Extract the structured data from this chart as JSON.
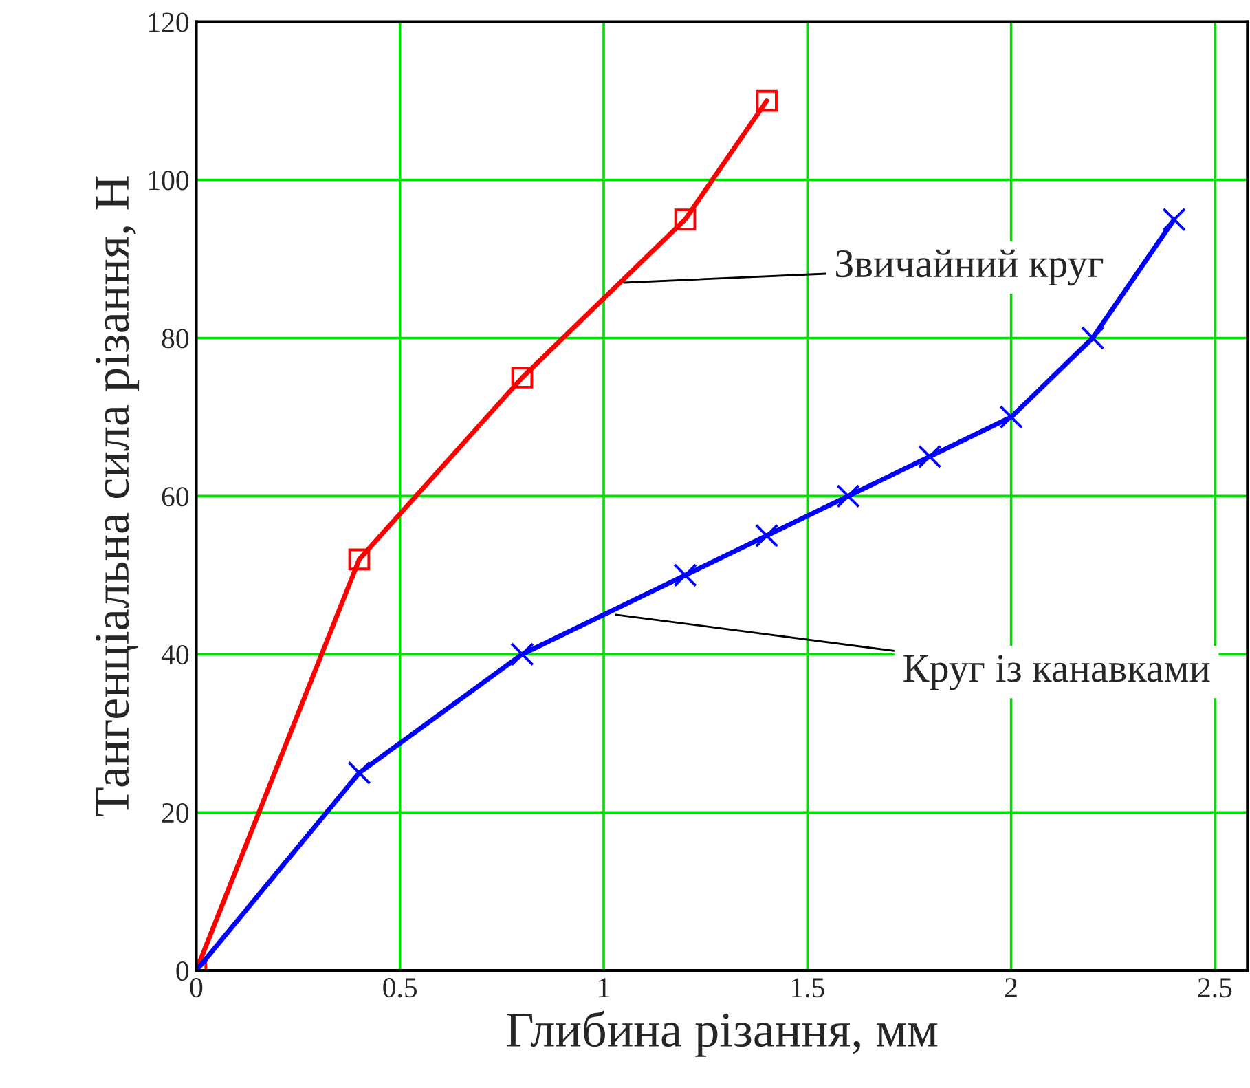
{
  "chart_data": {
    "type": "line",
    "xlabel": "Глибина різання, мм",
    "ylabel": "Тангенціальна сила різання, Н",
    "xlim": [
      0,
      2.58
    ],
    "xticks": [
      0,
      0.5,
      1,
      1.5,
      2,
      2.5
    ],
    "ylim": [
      0,
      120
    ],
    "yticks": [
      0,
      20,
      40,
      60,
      80,
      100,
      120
    ],
    "grid": true,
    "series": [
      {
        "color": "#ff0000",
        "marker": "square",
        "x": [
          0,
          0.4,
          0.8,
          1.2,
          1.4
        ],
        "values": [
          0,
          52,
          75,
          95,
          110
        ]
      },
      {
        "color": "#0000ff",
        "marker": "cross",
        "x": [
          0,
          0.4,
          0.8,
          1.2,
          1.4,
          1.6,
          1.8,
          2.0,
          2.2,
          2.4
        ],
        "values": [
          0,
          25,
          40,
          50,
          55,
          60,
          65,
          70,
          80,
          95
        ]
      }
    ],
    "annotations": [
      {
        "text": "Звичайний круг",
        "x": 1.05,
        "y": 87
      },
      {
        "text": "Круг із канавками",
        "x": 1.03,
        "y": 45
      }
    ]
  }
}
